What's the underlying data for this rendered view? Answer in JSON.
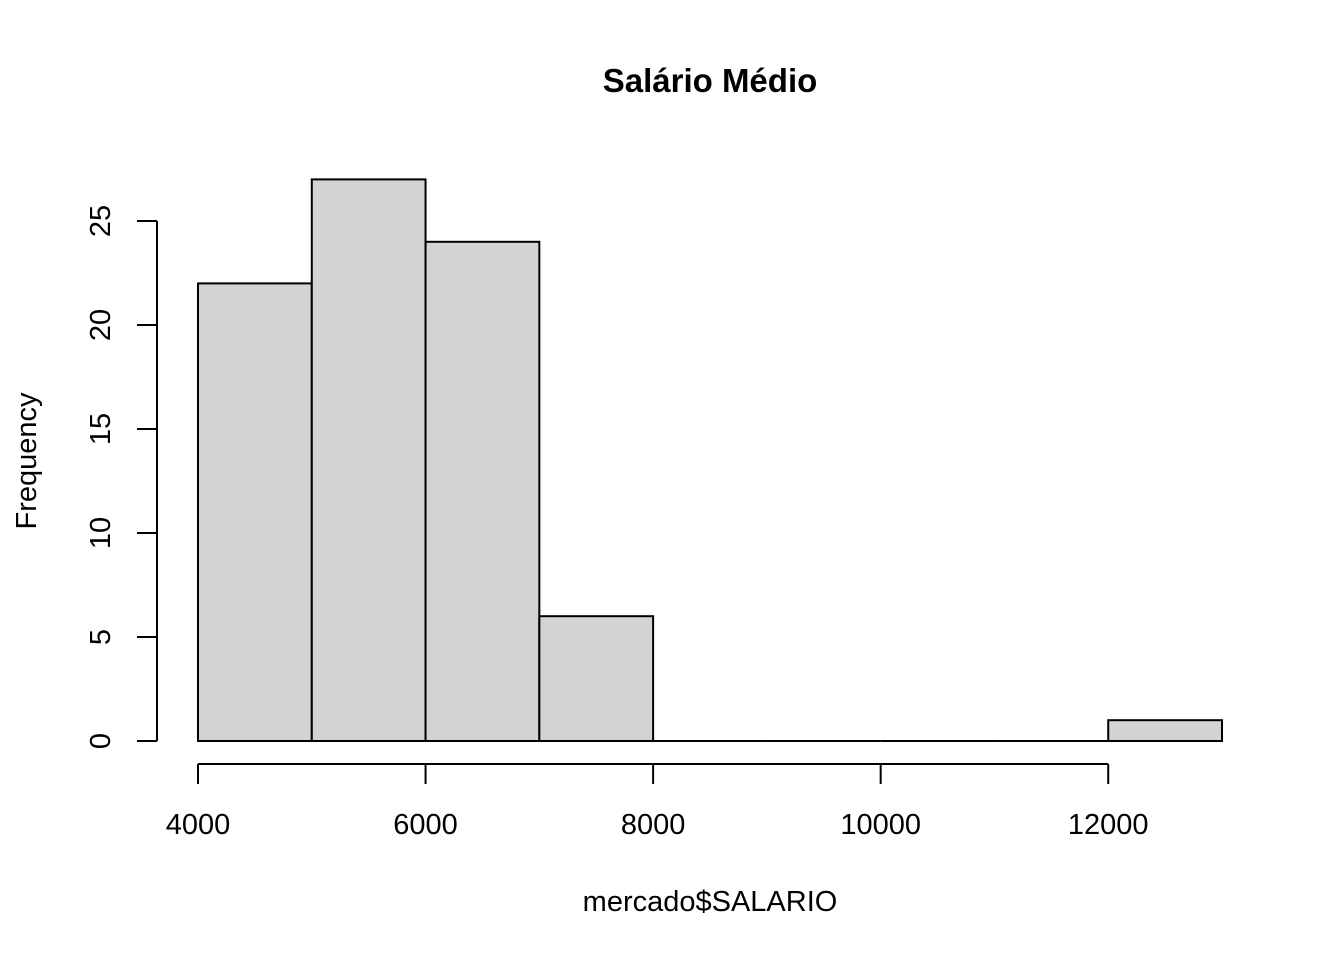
{
  "chart_data": {
    "type": "bar",
    "title": "Salário Médio",
    "xlabel": "mercado$SALARIO",
    "ylabel": "Frequency",
    "bins": [
      {
        "from": 4000,
        "to": 5000,
        "count": 22
      },
      {
        "from": 5000,
        "to": 6000,
        "count": 27
      },
      {
        "from": 6000,
        "to": 7000,
        "count": 24
      },
      {
        "from": 7000,
        "to": 8000,
        "count": 6
      },
      {
        "from": 8000,
        "to": 9000,
        "count": 0
      },
      {
        "from": 9000,
        "to": 10000,
        "count": 0
      },
      {
        "from": 10000,
        "to": 11000,
        "count": 0
      },
      {
        "from": 11000,
        "to": 12000,
        "count": 0
      },
      {
        "from": 12000,
        "to": 13000,
        "count": 1
      }
    ],
    "x_ticks": [
      4000,
      6000,
      8000,
      10000,
      12000
    ],
    "y_ticks": [
      0,
      5,
      10,
      15,
      20,
      25
    ],
    "xlim": [
      4000,
      13000
    ],
    "ylim": [
      0,
      27
    ],
    "bar_fill": "#d3d3d3",
    "bar_stroke": "#000000",
    "grid": false
  }
}
